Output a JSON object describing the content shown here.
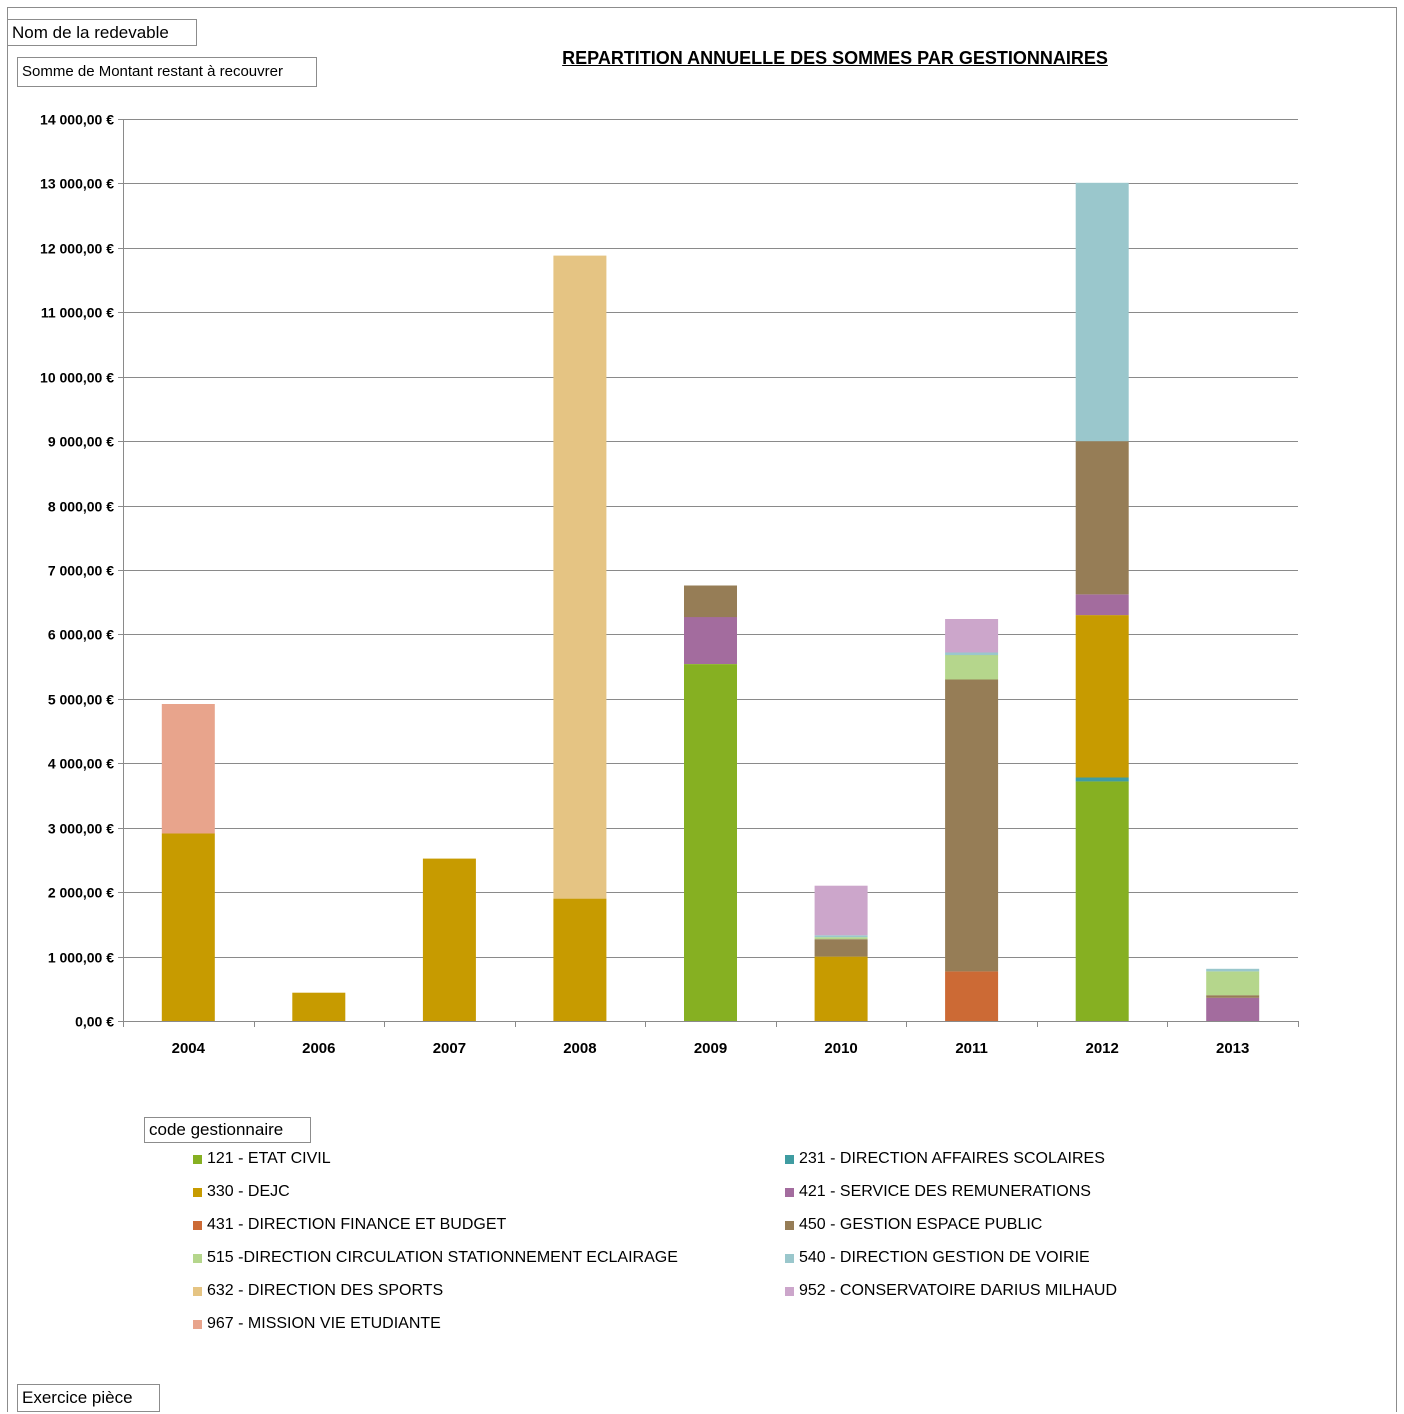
{
  "pivot_fields": {
    "row_filter": "Nom de la redevable",
    "data_field": "Somme de Montant restant à recouvrer",
    "legend_field": "code gestionnaire",
    "axis_field": "Exercice pièce"
  },
  "chart_data": {
    "type": "bar",
    "stacked": true,
    "title": "REPARTITION ANNUELLE DES SOMMES PAR GESTIONNAIRES",
    "xlabel": "",
    "ylabel": "",
    "ylim": [
      0,
      14000
    ],
    "grid": true,
    "legend_position": "bottom",
    "categories": [
      "2004",
      "2006",
      "2007",
      "2008",
      "2009",
      "2010",
      "2011",
      "2012",
      "2013"
    ],
    "yticks": [
      "0,00 €",
      "1 000,00 €",
      "2 000,00 €",
      "3 000,00 €",
      "4 000,00 €",
      "5 000,00 €",
      "6 000,00 €",
      "7 000,00 €",
      "8 000,00 €",
      "9 000,00 €",
      "10 000,00 €",
      "11 000,00 €",
      "12 000,00 €",
      "13 000,00 €",
      "14 000,00 €"
    ],
    "series": [
      {
        "name": "121 - ETAT CIVIL",
        "color": "#86B022",
        "values": [
          0,
          0,
          0,
          0,
          5540,
          0,
          0,
          3720,
          0
        ]
      },
      {
        "name": "231 - DIRECTION AFFAIRES SCOLAIRES",
        "color": "#3F9CA1",
        "values": [
          0,
          0,
          0,
          0,
          0,
          0,
          0,
          60,
          0
        ]
      },
      {
        "name": "330 - DEJC",
        "color": "#C79B00",
        "values": [
          2910,
          440,
          2520,
          1900,
          0,
          1000,
          0,
          2520,
          0
        ]
      },
      {
        "name": "421 - SERVICE DES REMUNERATIONS",
        "color": "#A36C9E",
        "values": [
          0,
          0,
          0,
          0,
          730,
          0,
          0,
          320,
          360
        ]
      },
      {
        "name": "431 - DIRECTION FINANCE ET BUDGET",
        "color": "#CC6A35",
        "values": [
          0,
          0,
          0,
          0,
          0,
          0,
          770,
          0,
          0
        ]
      },
      {
        "name": "450 - GESTION ESPACE PUBLIC",
        "color": "#967D56",
        "values": [
          0,
          0,
          0,
          0,
          490,
          270,
          4530,
          2380,
          40
        ]
      },
      {
        "name": "515 -DIRECTION CIRCULATION STATIONNEMENT ECLAIRAGE",
        "color": "#B5D68C",
        "values": [
          0,
          0,
          0,
          0,
          0,
          30,
          380,
          0,
          370
        ]
      },
      {
        "name": "540 - DIRECTION GESTION DE VOIRIE",
        "color": "#9AC7CC",
        "values": [
          0,
          0,
          0,
          0,
          0,
          30,
          40,
          4010,
          40
        ]
      },
      {
        "name": "632 - DIRECTION DES SPORTS",
        "color": "#E5C483",
        "values": [
          0,
          0,
          0,
          9980,
          0,
          0,
          0,
          0,
          0
        ]
      },
      {
        "name": "952 - CONSERVATOIRE DARIUS MILHAUD",
        "color": "#CCA6CB",
        "values": [
          0,
          0,
          0,
          0,
          0,
          770,
          520,
          0,
          0
        ]
      },
      {
        "name": "967 - MISSION VIE ETUDIANTE",
        "color": "#E8A48C",
        "values": [
          2010,
          0,
          0,
          0,
          0,
          0,
          0,
          0,
          0
        ]
      }
    ]
  }
}
